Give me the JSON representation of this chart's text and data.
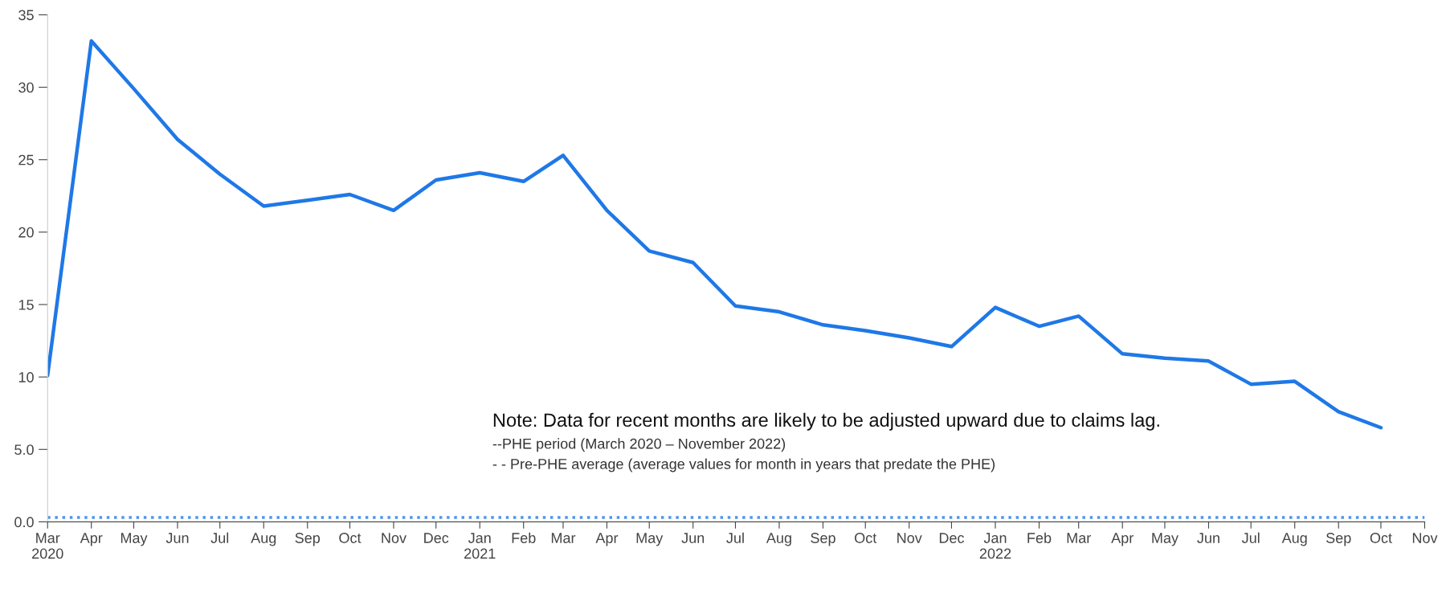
{
  "chart_data": {
    "type": "line",
    "x": [
      "2020-03",
      "2020-04",
      "2020-05",
      "2020-06",
      "2020-07",
      "2020-08",
      "2020-09",
      "2020-10",
      "2020-11",
      "2020-12",
      "2021-01",
      "2021-02",
      "2021-03",
      "2021-04",
      "2021-05",
      "2021-06",
      "2021-07",
      "2021-08",
      "2021-09",
      "2021-10",
      "2021-11",
      "2021-12",
      "2022-01",
      "2022-02",
      "2022-03",
      "2022-04",
      "2022-05",
      "2022-06",
      "2022-07",
      "2022-08",
      "2022-09",
      "2022-10",
      "2022-11"
    ],
    "series": [
      {
        "color": "#1f78e6",
        "line_style": "solid",
        "values": [
          10.1,
          33.2,
          29.9,
          26.4,
          24.0,
          21.8,
          22.2,
          22.6,
          21.5,
          23.6,
          24.1,
          23.5,
          25.3,
          21.5,
          18.7,
          17.9,
          14.9,
          14.5,
          13.6,
          13.2,
          12.7,
          12.1,
          14.8,
          13.5,
          14.2,
          11.6,
          11.3,
          11.1,
          9.5,
          9.7,
          7.6,
          6.5,
          null
        ]
      },
      {
        "color": "#4d94f0",
        "line_style": "dotted",
        "values": [
          0.3,
          0.3,
          0.3,
          0.3,
          0.3,
          0.3,
          0.3,
          0.3,
          0.3,
          0.3,
          0.3,
          0.3,
          0.3,
          0.3,
          0.3,
          0.3,
          0.3,
          0.3,
          0.3,
          0.3,
          0.3,
          0.3,
          0.3,
          0.3,
          0.3,
          0.3,
          0.3,
          0.3,
          0.3,
          0.3,
          0.3,
          0.3,
          0.3
        ]
      }
    ],
    "xlim": [
      "2020-03",
      "2022-11"
    ],
    "xticks": [
      {
        "value": "2020-03",
        "label": "Mar\n2020"
      },
      {
        "value": "2020-04",
        "label": "Apr"
      },
      {
        "value": "2020-05",
        "label": "May"
      },
      {
        "value": "2020-06",
        "label": "Jun"
      },
      {
        "value": "2020-07",
        "label": "Jul"
      },
      {
        "value": "2020-08",
        "label": "Aug"
      },
      {
        "value": "2020-09",
        "label": "Sep"
      },
      {
        "value": "2020-10",
        "label": "Oct"
      },
      {
        "value": "2020-11",
        "label": "Nov"
      },
      {
        "value": "2020-12",
        "label": "Dec"
      },
      {
        "value": "2021-01",
        "label": "Jan\n2021"
      },
      {
        "value": "2021-02",
        "label": "Feb"
      },
      {
        "value": "2021-03",
        "label": "Mar"
      },
      {
        "value": "2021-04",
        "label": "Apr"
      },
      {
        "value": "2021-05",
        "label": "May"
      },
      {
        "value": "2021-06",
        "label": "Jun"
      },
      {
        "value": "2021-07",
        "label": "Jul"
      },
      {
        "value": "2021-08",
        "label": "Aug"
      },
      {
        "value": "2021-09",
        "label": "Sep"
      },
      {
        "value": "2021-10",
        "label": "Oct"
      },
      {
        "value": "2021-11",
        "label": "Nov"
      },
      {
        "value": "2021-12",
        "label": "Dec"
      },
      {
        "value": "2022-01",
        "label": "Jan\n2022"
      },
      {
        "value": "2022-02",
        "label": "Feb"
      },
      {
        "value": "2022-03",
        "label": "Mar"
      },
      {
        "value": "2022-04",
        "label": "Apr"
      },
      {
        "value": "2022-05",
        "label": "May"
      },
      {
        "value": "2022-06",
        "label": "Jun"
      },
      {
        "value": "2022-07",
        "label": "Jul"
      },
      {
        "value": "2022-08",
        "label": "Aug"
      },
      {
        "value": "2022-09",
        "label": "Sep"
      },
      {
        "value": "2022-10",
        "label": "Oct"
      },
      {
        "value": "2022-11",
        "label": "Nov"
      }
    ],
    "ylim": [
      0,
      35
    ],
    "yticks": [
      {
        "value": 0,
        "label": "0.0"
      },
      {
        "value": 5,
        "label": "5.0"
      },
      10,
      15,
      20,
      25,
      30,
      35
    ],
    "grid": false,
    "legend": false,
    "marker": "none",
    "annotations": [
      "Note: Data for recent months are likely to be adjusted upward due to claims lag.",
      "--PHE period (March 2020 – November 2022)",
      "- - Pre-PHE average (average values for month in years that predate the PHE)"
    ]
  }
}
